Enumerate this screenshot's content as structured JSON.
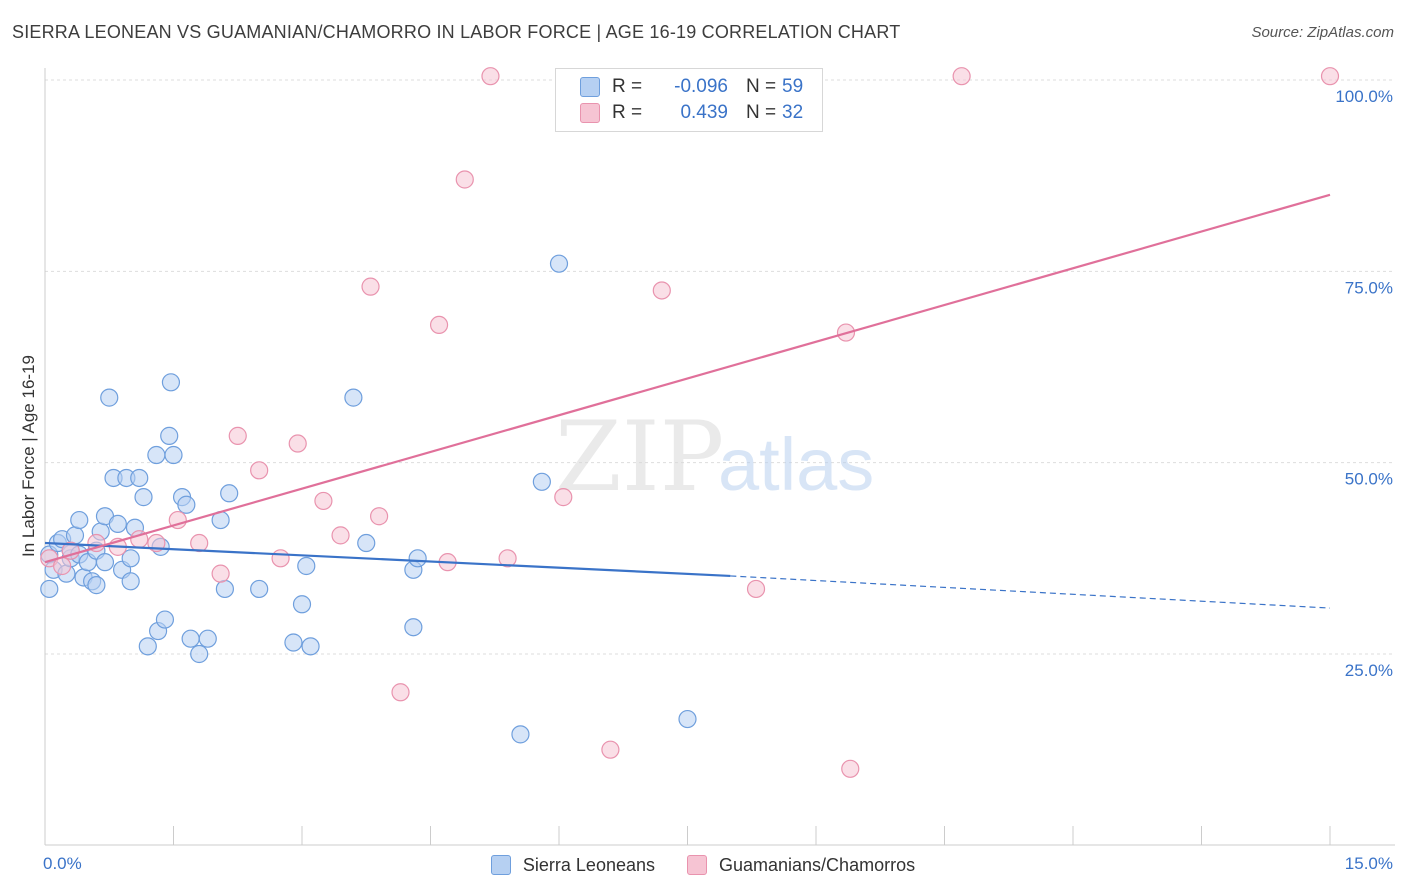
{
  "title": "SIERRA LEONEAN VS GUAMANIAN/CHAMORRO IN LABOR FORCE | AGE 16-19 CORRELATION CHART",
  "source": "Source: ZipAtlas.com",
  "watermark": {
    "zip": "ZIP",
    "atlas": "atlas"
  },
  "colors": {
    "blue_fill": "#b6d0f2",
    "blue_stroke": "#6f9fdd",
    "blue_line": "#3a73c8",
    "pink_fill": "#f6c4d3",
    "pink_stroke": "#e993ae",
    "pink_line": "#e0709a",
    "value_text": "#3a73c8",
    "grid": "#dddddd",
    "axis": "#cccccc"
  },
  "legend": {
    "rows": [
      {
        "r_label": "R =",
        "r_value": "-0.096",
        "n_label": "N =",
        "n_value": "59"
      },
      {
        "r_label": "R =",
        "r_value": "0.439",
        "n_label": "N =",
        "n_value": "32"
      }
    ]
  },
  "bottom_legend": {
    "series1": "Sierra Leoneans",
    "series2": "Guamanians/Chamorros"
  },
  "chart_data": {
    "type": "scatter",
    "title": "SIERRA LEONEAN VS GUAMANIAN/CHAMORRO IN LABOR FORCE | AGE 16-19 CORRELATION CHART",
    "xlabel": "",
    "ylabel": "In Labor Force | Age 16-19",
    "xlim": [
      0,
      15
    ],
    "ylim": [
      0,
      102
    ],
    "x_tick_labels": [
      "0.0%",
      "15.0%"
    ],
    "y_ticks": [
      25,
      50,
      75,
      100
    ],
    "y_tick_labels": [
      "25.0%",
      "50.0%",
      "75.0%",
      "100.0%"
    ],
    "grid": true,
    "legend_position": "top-center",
    "series": [
      {
        "name": "Sierra Leoneans",
        "color": "#6f9fdd",
        "r": -0.096,
        "n": 59,
        "trend": {
          "x0": 0,
          "y0": 39.5,
          "x1": 8.0,
          "y1": 35.2,
          "dashed_to_x": 15,
          "dashed_to_y": 31.0
        },
        "points": [
          [
            0.05,
            33.5
          ],
          [
            0.05,
            38.0
          ],
          [
            0.1,
            36.0
          ],
          [
            0.15,
            39.5
          ],
          [
            0.2,
            40.0
          ],
          [
            0.25,
            35.5
          ],
          [
            0.3,
            37.5
          ],
          [
            0.3,
            38.5
          ],
          [
            0.35,
            40.5
          ],
          [
            0.4,
            42.5
          ],
          [
            0.4,
            38.0
          ],
          [
            0.45,
            35.0
          ],
          [
            0.5,
            37.0
          ],
          [
            0.55,
            34.5
          ],
          [
            0.6,
            34.0
          ],
          [
            0.6,
            38.5
          ],
          [
            0.65,
            41.0
          ],
          [
            0.7,
            43.0
          ],
          [
            0.7,
            37.0
          ],
          [
            0.75,
            58.5
          ],
          [
            0.8,
            48.0
          ],
          [
            0.85,
            42.0
          ],
          [
            0.9,
            36.0
          ],
          [
            0.95,
            48.0
          ],
          [
            1.0,
            37.5
          ],
          [
            1.0,
            34.5
          ],
          [
            1.05,
            41.5
          ],
          [
            1.1,
            48.0
          ],
          [
            1.15,
            45.5
          ],
          [
            1.2,
            26.0
          ],
          [
            1.3,
            51.0
          ],
          [
            1.32,
            28.0
          ],
          [
            1.35,
            39.0
          ],
          [
            1.4,
            29.5
          ],
          [
            1.45,
            53.5
          ],
          [
            1.47,
            60.5
          ],
          [
            1.5,
            51.0
          ],
          [
            1.6,
            45.5
          ],
          [
            1.65,
            44.5
          ],
          [
            1.7,
            27.0
          ],
          [
            1.8,
            25.0
          ],
          [
            1.9,
            27.0
          ],
          [
            2.05,
            42.5
          ],
          [
            2.1,
            33.5
          ],
          [
            2.15,
            46.0
          ],
          [
            2.5,
            33.5
          ],
          [
            2.9,
            26.5
          ],
          [
            3.0,
            31.5
          ],
          [
            3.05,
            36.5
          ],
          [
            3.1,
            26.0
          ],
          [
            3.6,
            58.5
          ],
          [
            3.75,
            39.5
          ],
          [
            4.3,
            28.5
          ],
          [
            4.3,
            36.0
          ],
          [
            4.35,
            37.5
          ],
          [
            5.55,
            14.5
          ],
          [
            5.8,
            47.5
          ],
          [
            6.0,
            76.0
          ],
          [
            7.5,
            16.5
          ]
        ]
      },
      {
        "name": "Guamanians/Chamorros",
        "color": "#e993ae",
        "r": 0.439,
        "n": 32,
        "trend": {
          "x0": 0,
          "y0": 37.0,
          "x1": 15,
          "y1": 85.0
        },
        "points": [
          [
            0.05,
            37.5
          ],
          [
            0.2,
            36.5
          ],
          [
            0.3,
            38.5
          ],
          [
            0.6,
            39.5
          ],
          [
            0.85,
            39.0
          ],
          [
            1.1,
            40.0
          ],
          [
            1.3,
            39.5
          ],
          [
            1.55,
            42.5
          ],
          [
            1.8,
            39.5
          ],
          [
            2.05,
            35.5
          ],
          [
            2.25,
            53.5
          ],
          [
            2.5,
            49.0
          ],
          [
            2.75,
            37.5
          ],
          [
            2.95,
            52.5
          ],
          [
            3.25,
            45.0
          ],
          [
            3.45,
            40.5
          ],
          [
            3.8,
            73.0
          ],
          [
            3.9,
            43.0
          ],
          [
            4.15,
            20.0
          ],
          [
            4.6,
            68.0
          ],
          [
            4.7,
            37.0
          ],
          [
            4.9,
            87.0
          ],
          [
            5.2,
            100.5
          ],
          [
            5.4,
            37.5
          ],
          [
            6.05,
            45.5
          ],
          [
            6.6,
            12.5
          ],
          [
            7.2,
            72.5
          ],
          [
            8.3,
            33.5
          ],
          [
            9.35,
            67.0
          ],
          [
            9.4,
            10.0
          ],
          [
            10.7,
            100.5
          ],
          [
            15.0,
            100.5
          ]
        ]
      }
    ]
  }
}
